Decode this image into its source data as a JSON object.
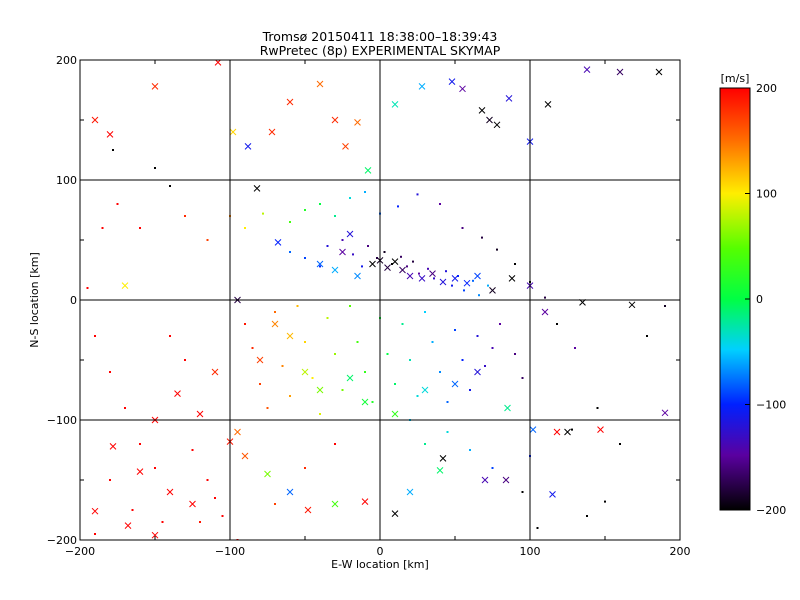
{
  "chart_data": {
    "type": "scatter",
    "title": "Tromsø 20150411 18:38:00–18:39:43",
    "subtitle": "RwPretec (8p) EXPERIMENTAL SKYMAP",
    "xlabel": "E-W location [km]",
    "ylabel": "N-S location [km]",
    "xlim": [
      -200,
      200
    ],
    "ylim": [
      -200,
      200
    ],
    "x_ticks": [
      -200,
      -100,
      0,
      100,
      200
    ],
    "y_ticks": [
      -200,
      -100,
      0,
      100,
      200
    ],
    "grid_lines_x": [
      -100,
      0,
      100
    ],
    "grid_lines_y": [
      -100,
      0,
      100
    ],
    "colorbar": {
      "unit_label": "[m/s]",
      "min": -200,
      "max": 200,
      "ticks": [
        200,
        100,
        0,
        -100,
        -200
      ],
      "colormap": "rainbow (black-purple-blue-cyan-green-yellow-red)"
    },
    "markers": {
      "x": "cross",
      "dot": "small point"
    },
    "series": [
      {
        "marker": "x",
        "points": [
          [
            -190,
            150,
            190
          ],
          [
            -180,
            138,
            200
          ],
          [
            -150,
            178,
            180
          ],
          [
            -108,
            198,
            200
          ],
          [
            -98,
            140,
            110
          ],
          [
            -88,
            128,
            -110
          ],
          [
            -72,
            140,
            180
          ],
          [
            -60,
            165,
            180
          ],
          [
            -40,
            180,
            150
          ],
          [
            -30,
            150,
            180
          ],
          [
            -23,
            128,
            170
          ],
          [
            -15,
            148,
            150
          ],
          [
            -8,
            108,
            -10
          ],
          [
            10,
            163,
            -30
          ],
          [
            28,
            178,
            -60
          ],
          [
            48,
            182,
            -110
          ],
          [
            55,
            176,
            -150
          ],
          [
            68,
            158,
            -200
          ],
          [
            73,
            150,
            -190
          ],
          [
            78,
            146,
            -200
          ],
          [
            86,
            168,
            -120
          ],
          [
            100,
            132,
            -110
          ],
          [
            112,
            163,
            -200
          ],
          [
            138,
            192,
            -140
          ],
          [
            160,
            190,
            -170
          ],
          [
            186,
            190,
            -200
          ],
          [
            -170,
            12,
            100
          ],
          [
            -95,
            0,
            -180
          ],
          [
            -82,
            93,
            -200
          ],
          [
            -68,
            48,
            -100
          ],
          [
            -40,
            30,
            -80
          ],
          [
            -30,
            25,
            -60
          ],
          [
            -25,
            40,
            -150
          ],
          [
            -20,
            55,
            -120
          ],
          [
            -15,
            20,
            -70
          ],
          [
            -5,
            30,
            -200
          ],
          [
            0,
            33,
            -190
          ],
          [
            5,
            27,
            -180
          ],
          [
            10,
            32,
            -200
          ],
          [
            15,
            25,
            -170
          ],
          [
            20,
            20,
            -140
          ],
          [
            28,
            18,
            -130
          ],
          [
            35,
            22,
            -160
          ],
          [
            42,
            15,
            -120
          ],
          [
            50,
            18,
            -110
          ],
          [
            58,
            14,
            -100
          ],
          [
            65,
            20,
            -90
          ],
          [
            75,
            8,
            -190
          ],
          [
            88,
            18,
            -200
          ],
          [
            100,
            12,
            -140
          ],
          [
            110,
            -10,
            -150
          ],
          [
            135,
            -2,
            -200
          ],
          [
            168,
            -4,
            -200
          ],
          [
            -150,
            -100,
            200
          ],
          [
            -178,
            -122,
            200
          ],
          [
            -160,
            -143,
            200
          ],
          [
            -140,
            -160,
            200
          ],
          [
            -125,
            -170,
            200
          ],
          [
            -190,
            -176,
            200
          ],
          [
            -168,
            -188,
            200
          ],
          [
            -150,
            -196,
            200
          ],
          [
            -100,
            -118,
            190
          ],
          [
            -90,
            -130,
            160
          ],
          [
            -75,
            -145,
            60
          ],
          [
            -60,
            -160,
            -80
          ],
          [
            -48,
            -175,
            190
          ],
          [
            -30,
            -170,
            40
          ],
          [
            -10,
            -168,
            200
          ],
          [
            10,
            -178,
            -200
          ],
          [
            20,
            -160,
            -60
          ],
          [
            40,
            -142,
            -10
          ],
          [
            42,
            -132,
            -200
          ],
          [
            70,
            -150,
            -140
          ],
          [
            84,
            -150,
            -160
          ],
          [
            102,
            -108,
            -80
          ],
          [
            118,
            -110,
            200
          ],
          [
            125,
            -110,
            -200
          ],
          [
            147,
            -108,
            200
          ],
          [
            190,
            -94,
            -150
          ],
          [
            115,
            -162,
            -110
          ],
          [
            -135,
            -78,
            200
          ],
          [
            -110,
            -60,
            180
          ],
          [
            -80,
            -50,
            170
          ],
          [
            -70,
            -20,
            140
          ],
          [
            -60,
            -30,
            120
          ],
          [
            -50,
            -60,
            80
          ],
          [
            -40,
            -75,
            60
          ],
          [
            -20,
            -65,
            -10
          ],
          [
            -10,
            -85,
            10
          ],
          [
            10,
            -95,
            30
          ],
          [
            30,
            -75,
            -40
          ],
          [
            50,
            -70,
            -80
          ],
          [
            65,
            -60,
            -120
          ],
          [
            85,
            -90,
            -20
          ],
          [
            -120,
            -95,
            200
          ],
          [
            -95,
            -110,
            150
          ]
        ]
      },
      {
        "marker": "dot",
        "points": [
          [
            -178,
            125,
            -200
          ],
          [
            -150,
            110,
            -200
          ],
          [
            -140,
            95,
            -200
          ],
          [
            -195,
            10,
            200
          ],
          [
            -185,
            60,
            200
          ],
          [
            -175,
            80,
            200
          ],
          [
            -160,
            60,
            200
          ],
          [
            -130,
            70,
            180
          ],
          [
            -115,
            50,
            170
          ],
          [
            -100,
            70,
            140
          ],
          [
            -90,
            60,
            100
          ],
          [
            -78,
            72,
            80
          ],
          [
            -60,
            65,
            40
          ],
          [
            -50,
            75,
            20
          ],
          [
            -40,
            80,
            0
          ],
          [
            -30,
            70,
            -20
          ],
          [
            -20,
            85,
            -40
          ],
          [
            -10,
            90,
            -60
          ],
          [
            0,
            72,
            -80
          ],
          [
            12,
            78,
            -100
          ],
          [
            25,
            88,
            -120
          ],
          [
            40,
            80,
            -150
          ],
          [
            55,
            60,
            -160
          ],
          [
            68,
            52,
            -180
          ],
          [
            78,
            42,
            -190
          ],
          [
            90,
            30,
            -200
          ],
          [
            100,
            15,
            -200
          ],
          [
            110,
            2,
            -180
          ],
          [
            118,
            -20,
            -200
          ],
          [
            130,
            -40,
            -150
          ],
          [
            145,
            -90,
            -200
          ],
          [
            160,
            -120,
            -200
          ],
          [
            178,
            -30,
            -200
          ],
          [
            190,
            -5,
            -190
          ],
          [
            -190,
            -30,
            200
          ],
          [
            -180,
            -60,
            200
          ],
          [
            -170,
            -90,
            200
          ],
          [
            -160,
            -120,
            200
          ],
          [
            -150,
            -140,
            200
          ],
          [
            -140,
            -30,
            200
          ],
          [
            -130,
            -50,
            200
          ],
          [
            -125,
            -125,
            200
          ],
          [
            -115,
            -150,
            200
          ],
          [
            -105,
            -180,
            200
          ],
          [
            -95,
            -200,
            200
          ],
          [
            -180,
            -150,
            200
          ],
          [
            -190,
            -195,
            200
          ],
          [
            -165,
            -175,
            200
          ],
          [
            -145,
            -185,
            200
          ],
          [
            -90,
            -20,
            190
          ],
          [
            -85,
            -40,
            180
          ],
          [
            -80,
            -70,
            170
          ],
          [
            -75,
            -90,
            160
          ],
          [
            -70,
            -10,
            150
          ],
          [
            -65,
            -55,
            140
          ],
          [
            -60,
            -80,
            130
          ],
          [
            -55,
            -5,
            120
          ],
          [
            -50,
            -35,
            110
          ],
          [
            -45,
            -65,
            100
          ],
          [
            -40,
            -95,
            90
          ],
          [
            -35,
            -15,
            80
          ],
          [
            -30,
            -45,
            70
          ],
          [
            -25,
            -75,
            60
          ],
          [
            -20,
            -5,
            50
          ],
          [
            -15,
            -35,
            40
          ],
          [
            -10,
            -60,
            30
          ],
          [
            -5,
            -85,
            20
          ],
          [
            0,
            -15,
            10
          ],
          [
            5,
            -45,
            0
          ],
          [
            10,
            -70,
            -10
          ],
          [
            15,
            -20,
            -20
          ],
          [
            20,
            -50,
            -30
          ],
          [
            25,
            -80,
            -40
          ],
          [
            30,
            -10,
            -50
          ],
          [
            35,
            -35,
            -60
          ],
          [
            40,
            -60,
            -70
          ],
          [
            45,
            -85,
            -80
          ],
          [
            50,
            -25,
            -90
          ],
          [
            55,
            -50,
            -100
          ],
          [
            60,
            -75,
            -110
          ],
          [
            65,
            -30,
            -120
          ],
          [
            70,
            -55,
            -130
          ],
          [
            75,
            -40,
            -140
          ],
          [
            80,
            -20,
            -150
          ],
          [
            90,
            -45,
            -160
          ],
          [
            95,
            -65,
            -170
          ],
          [
            -60,
            40,
            -80
          ],
          [
            -50,
            35,
            -90
          ],
          [
            -40,
            28,
            -100
          ],
          [
            -35,
            45,
            -120
          ],
          [
            -25,
            50,
            -140
          ],
          [
            -18,
            38,
            -130
          ],
          [
            -12,
            28,
            -110
          ],
          [
            -8,
            45,
            -160
          ],
          [
            -2,
            35,
            -180
          ],
          [
            3,
            40,
            -190
          ],
          [
            8,
            30,
            -200
          ],
          [
            14,
            36,
            -170
          ],
          [
            18,
            28,
            -160
          ],
          [
            22,
            32,
            -180
          ],
          [
            26,
            22,
            -150
          ],
          [
            32,
            26,
            -140
          ],
          [
            36,
            18,
            -130
          ],
          [
            44,
            24,
            -120
          ],
          [
            48,
            12,
            -110
          ],
          [
            52,
            20,
            -100
          ],
          [
            56,
            8,
            -90
          ],
          [
            62,
            16,
            -80
          ],
          [
            66,
            4,
            -70
          ],
          [
            72,
            12,
            -60
          ],
          [
            30,
            -120,
            -20
          ],
          [
            45,
            -110,
            -40
          ],
          [
            60,
            -125,
            -60
          ],
          [
            75,
            -140,
            -90
          ],
          [
            95,
            -160,
            -200
          ],
          [
            105,
            -190,
            -200
          ],
          [
            138,
            -180,
            -200
          ],
          [
            150,
            -168,
            -200
          ],
          [
            128,
            -108,
            -200
          ],
          [
            100,
            -130,
            -100
          ],
          [
            -30,
            -120,
            200
          ],
          [
            -50,
            -140,
            180
          ],
          [
            -70,
            -170,
            170
          ],
          [
            -110,
            -165,
            200
          ],
          [
            -120,
            -185,
            190
          ],
          [
            20,
            -100,
            -50
          ]
        ]
      }
    ]
  }
}
